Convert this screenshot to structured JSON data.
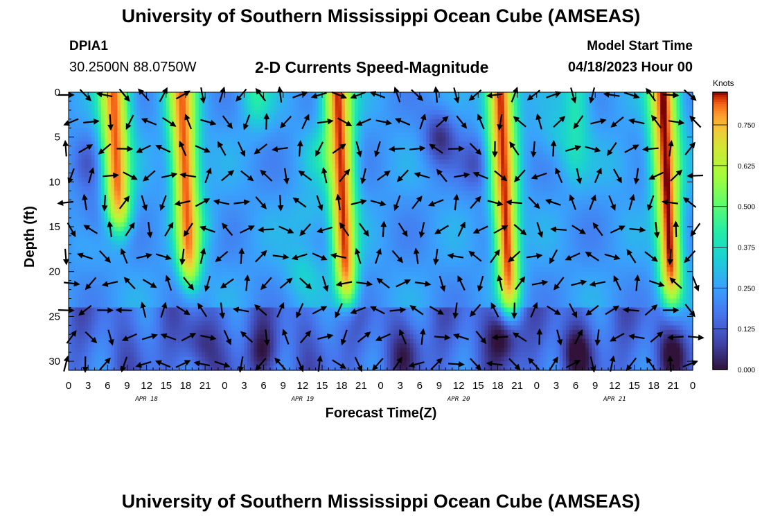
{
  "header": {
    "title": "University of Southern Mississippi Ocean Cube (AMSEAS)",
    "station_id": "DPIA1",
    "station_coords": "30.2500N  88.0750W",
    "variable": "2-D Currents Speed-Magnitude",
    "model_start_label": "Model Start Time",
    "model_start_value": "04/18/2023 Hour 00"
  },
  "footer": {
    "title": "University of Southern Mississippi Ocean Cube (AMSEAS)"
  },
  "chart_data": {
    "type": "heatmap",
    "title": "2-D Currents Speed-Magnitude",
    "xlabel": "Forecast Time(Z)",
    "ylabel": "Depth (ft)",
    "xlim": [
      0,
      96
    ],
    "ylim": [
      31,
      0
    ],
    "x_ticks": [
      0,
      3,
      6,
      9,
      12,
      15,
      18,
      21,
      24,
      27,
      30,
      33,
      36,
      39,
      42,
      45,
      48,
      51,
      54,
      57,
      60,
      63,
      66,
      69,
      72,
      75,
      78,
      81,
      84,
      87,
      90,
      93,
      96
    ],
    "x_tick_labels": [
      "0",
      "3",
      "6",
      "9",
      "12",
      "15",
      "18",
      "21",
      "0",
      "3",
      "6",
      "9",
      "12",
      "15",
      "18",
      "21",
      "0",
      "3",
      "6",
      "9",
      "12",
      "15",
      "18",
      "21",
      "0",
      "3",
      "6",
      "9",
      "12",
      "15",
      "18",
      "21",
      "0"
    ],
    "date_labels": [
      {
        "label": "APR 18",
        "hour": 12
      },
      {
        "label": "APR 19",
        "hour": 36
      },
      {
        "label": "APR 20",
        "hour": 60
      },
      {
        "label": "APR 21",
        "hour": 84
      }
    ],
    "y_ticks": [
      0,
      5,
      10,
      15,
      20,
      25,
      30
    ],
    "colorbar": {
      "unit": "Knots",
      "range": [
        0,
        0.85
      ],
      "ticks": [
        0.0,
        0.125,
        0.25,
        0.375,
        0.5,
        0.625,
        0.75
      ],
      "tick_labels": [
        "0.000",
        "0.125",
        "0.250",
        "0.375",
        "0.500",
        "0.625",
        "0.750"
      ]
    },
    "high_speed_bands": [
      {
        "center_hour": 7.5,
        "bottom_depth_ft": 15,
        "peak_knots": 0.82
      },
      {
        "center_hour": 18,
        "bottom_depth_ft": 21,
        "peak_knots": 0.82
      },
      {
        "center_hour": 29,
        "bottom_depth_ft": 3,
        "peak_knots": 0.45
      },
      {
        "center_hour": 42,
        "bottom_depth_ft": 23,
        "peak_knots": 0.84
      },
      {
        "center_hour": 67,
        "bottom_depth_ft": 24,
        "peak_knots": 0.84
      },
      {
        "center_hour": 78,
        "bottom_depth_ft": 9,
        "peak_knots": 0.4
      },
      {
        "center_hour": 92,
        "bottom_depth_ft": 23,
        "peak_knots": 0.86
      }
    ],
    "vector_grid": {
      "hour_step": 3,
      "depths_ft": [
        0,
        3,
        6,
        9,
        12,
        15,
        18,
        21,
        24,
        27,
        30
      ]
    }
  }
}
